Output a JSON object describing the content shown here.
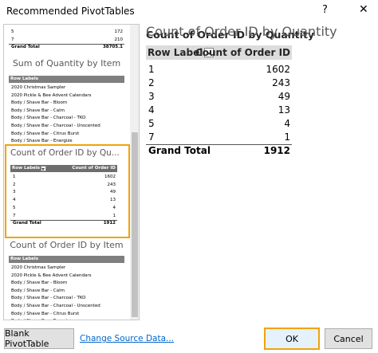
{
  "dialog": {
    "title": "Recommended PivotTables",
    "help": "?",
    "close": "✕"
  },
  "thumbnails": [
    {
      "rows": [
        [
          "5",
          172
        ],
        [
          "7",
          210
        ]
      ],
      "grand_total": [
        "Grand Total",
        38705.1
      ]
    },
    {
      "title": "Sum of Quantity by Item",
      "header": [
        "Row Labels"
      ],
      "rows": [
        "2020 Christmas Sampler",
        "2020 Pickle & Bee Advent Calendars",
        "Body / Shave Bar - Bloom",
        "Body / Shave Bar - Calm",
        "Body / Shave Bar - Charcoal - TKO",
        "Body / Shave Bar - Charcoal - Unscented",
        "Body / Shave Bar - Citrus Burst",
        "Body / Shave Bar - Energize"
      ]
    },
    {
      "title": "Count of Order ID by Qu...",
      "header": [
        "Row Labels",
        "Count of Order ID"
      ],
      "rows": [
        [
          "1",
          1602
        ],
        [
          "2",
          243
        ],
        [
          "3",
          49
        ],
        [
          "4",
          13
        ],
        [
          "5",
          4
        ],
        [
          "7",
          1
        ]
      ],
      "grand_total": [
        "Grand Total",
        1912
      ]
    },
    {
      "title": "Count of Order ID by Item",
      "header": [
        "Row Labels"
      ],
      "rows": [
        "2020 Christmas Sampler",
        "2020 Pickle & Bee Advent Calendars",
        "Body / Shave Bar - Bloom",
        "Body / Shave Bar - Calm",
        "Body / Shave Bar - Charcoal - TKO",
        "Body / Shave Bar - Charcoal - Unscented",
        "Body / Shave Bar - Citrus Burst",
        "Body / Shave Bar - Energize"
      ]
    }
  ],
  "preview": {
    "title": "Count of Order ID by Quantity",
    "header": [
      "Row Labels",
      "Count of Order ID"
    ],
    "rows": [
      [
        "1",
        1602
      ],
      [
        "2",
        243
      ],
      [
        "3",
        49
      ],
      [
        "4",
        13
      ],
      [
        "5",
        4
      ],
      [
        "7",
        1
      ]
    ],
    "grand_total": [
      "Grand Total",
      1912
    ]
  },
  "buttons": {
    "blank": "Blank PivotTable",
    "change_source": "Change Source Data...",
    "ok": "OK",
    "cancel": "Cancel"
  }
}
